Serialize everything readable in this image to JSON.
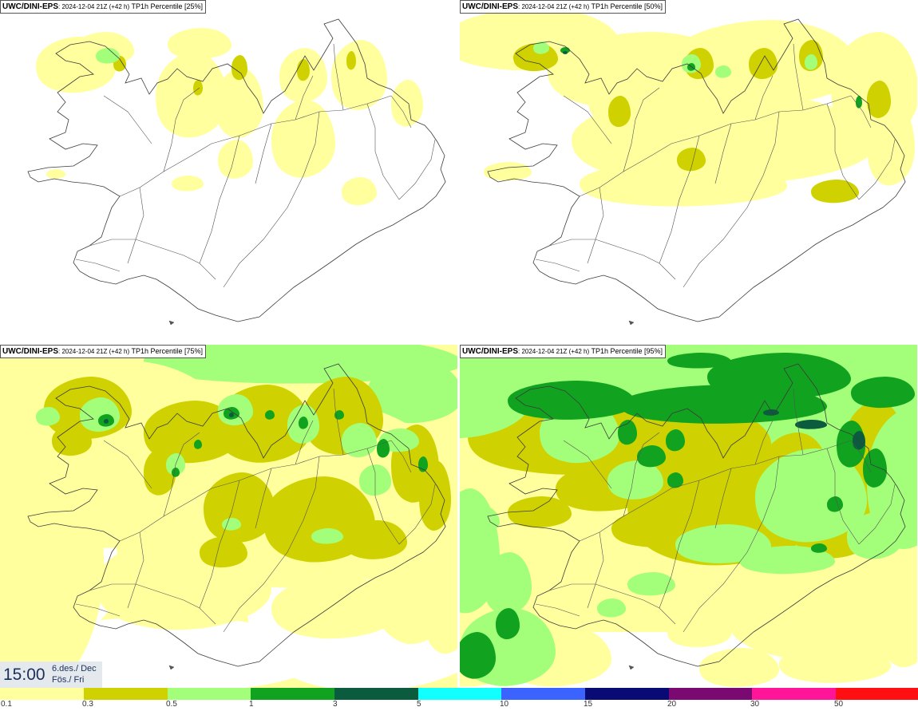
{
  "panels": [
    {
      "model": "UWC/DINI-EPS",
      "date": ": 2024-12-04 21Z (+42 h)",
      "label": " TP1h Percentile [25%]",
      "coverage": 1
    },
    {
      "model": "UWC/DINI-EPS",
      "date": ": 2024-12-04 21Z (+42 h)",
      "label": " TP1h Percentile [50%]",
      "coverage": 2
    },
    {
      "model": "UWC/DINI-EPS",
      "date": ": 2024-12-04 21Z (+42 h)",
      "label": " TP1h Percentile [75%]",
      "coverage": 3
    },
    {
      "model": "UWC/DINI-EPS",
      "date": ": 2024-12-04 21Z (+42 h)",
      "label": " TP1h Percentile [95%]",
      "coverage": 4
    }
  ],
  "valid_time": {
    "time": "15:00",
    "date": "6.des./ Dec",
    "day": "Fös./ Fri"
  },
  "legend": {
    "ticks": [
      "0.1",
      "0.3",
      "0.5",
      "1",
      "3",
      "5",
      "10",
      "15",
      "20",
      "30",
      "50"
    ],
    "colors": [
      "#ffff9e",
      "#cfd200",
      "#a3ff7a",
      "#11a31f",
      "#0b5c3e",
      "#11ffff",
      "#3b63ff",
      "#0a0a74",
      "#7a0a72",
      "#ff1597",
      "#ff0f12"
    ]
  }
}
